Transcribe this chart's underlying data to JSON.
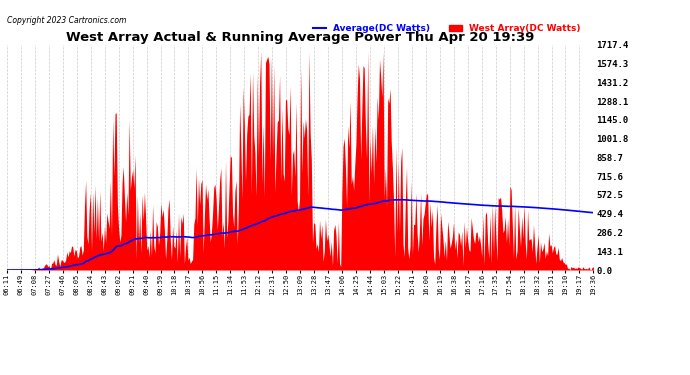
{
  "title": "West Array Actual & Running Average Power Thu Apr 20 19:39",
  "copyright": "Copyright 2023 Cartronics.com",
  "ylabel_right_values": [
    0.0,
    143.1,
    286.2,
    429.4,
    572.5,
    715.6,
    858.7,
    1001.8,
    1145.0,
    1288.1,
    1431.2,
    1574.3,
    1717.4
  ],
  "ymax": 1717.4,
  "ymin": 0.0,
  "legend_avg": "Average(DC Watts)",
  "legend_west": "West Array(DC Watts)",
  "avg_color": "#0000ff",
  "west_color": "#ff0000",
  "background_color": "#ffffff",
  "grid_color": "#cccccc",
  "x_tick_labels": [
    "06:11",
    "06:49",
    "07:08",
    "07:27",
    "07:46",
    "08:05",
    "08:24",
    "08:43",
    "09:02",
    "09:21",
    "09:40",
    "09:59",
    "10:18",
    "10:37",
    "10:56",
    "11:15",
    "11:34",
    "11:53",
    "12:12",
    "12:31",
    "12:50",
    "13:09",
    "13:28",
    "13:47",
    "14:06",
    "14:25",
    "14:44",
    "15:03",
    "15:22",
    "15:41",
    "16:00",
    "16:19",
    "16:38",
    "16:57",
    "17:16",
    "17:35",
    "17:54",
    "18:13",
    "18:32",
    "18:51",
    "19:10",
    "19:17",
    "19:36"
  ]
}
